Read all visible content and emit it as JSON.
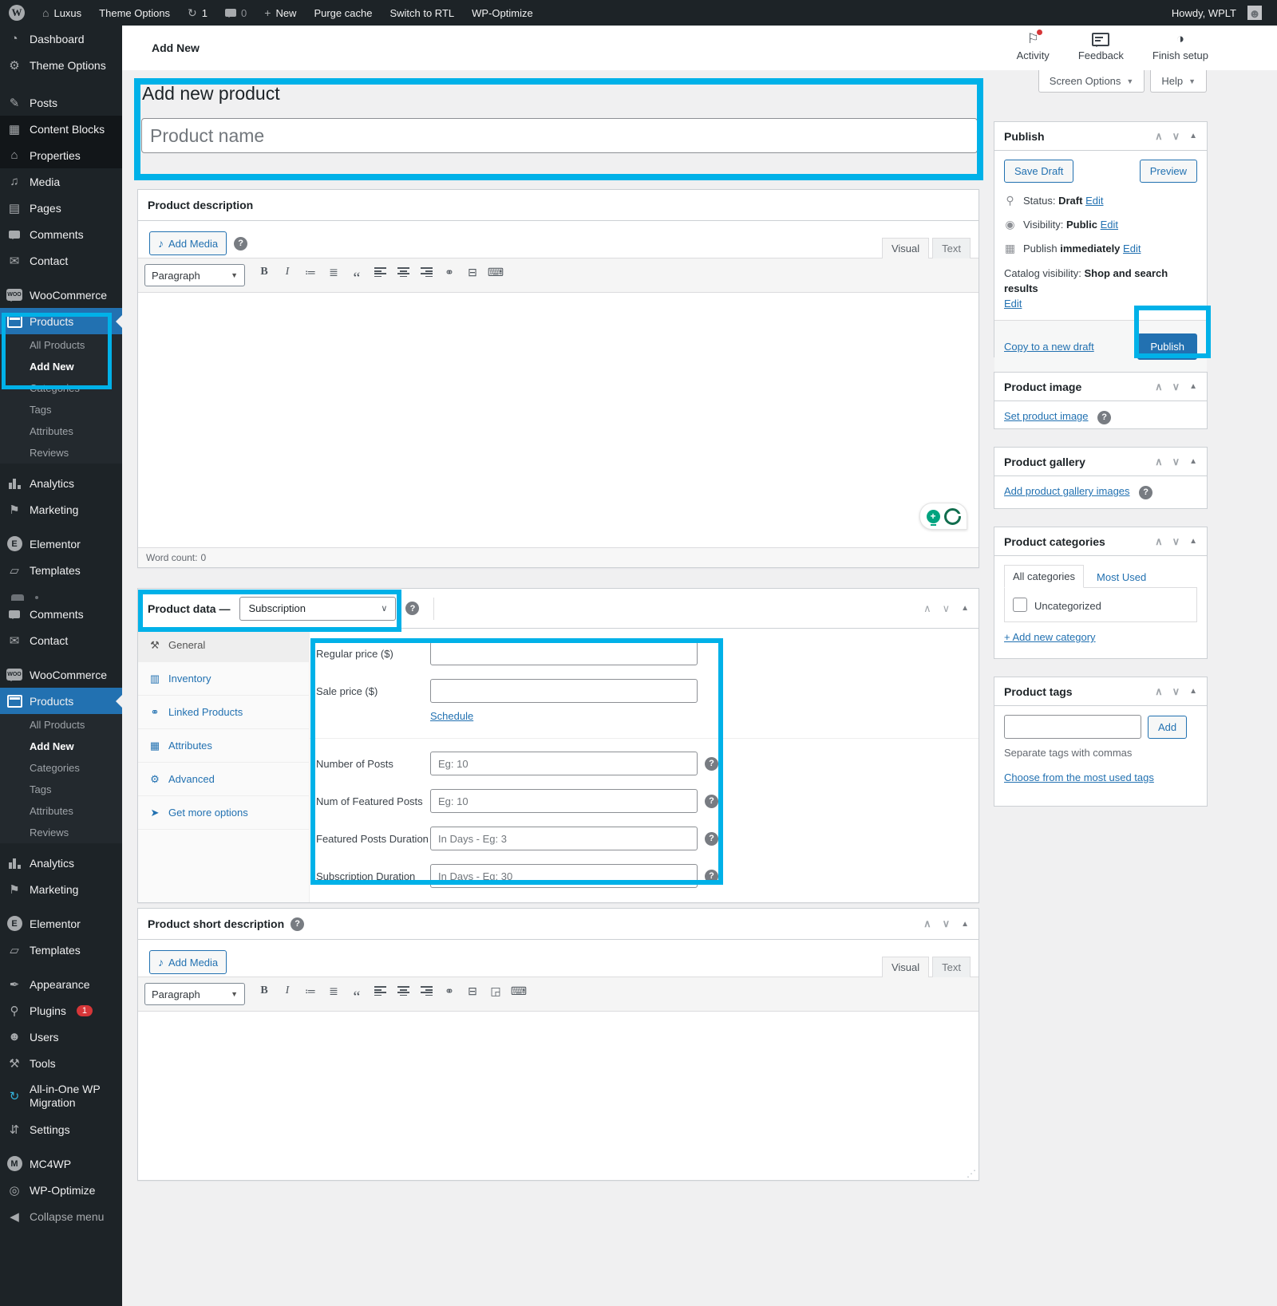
{
  "colors": {
    "annotation": "#00b1e8",
    "accent": "#2271b1",
    "sidebar_active": "#2271b1",
    "badge_red": "#d63638"
  },
  "glyphs": {
    "caret_down": "▼",
    "up": "∧",
    "down": "∨",
    "toggle": "▲",
    "help": "?",
    "resize": "⋰",
    "select_caret": "∨"
  },
  "admin_bar": {
    "logo": "W",
    "home_icon": "⌂",
    "site_name": "Luxus",
    "theme_options": "Theme Options",
    "update_icon": "↻",
    "update_count": "1",
    "comment_count": "0",
    "plus_icon": "+",
    "new_label": "New",
    "purge_cache": "Purge cache",
    "switch_rtl": "Switch to RTL",
    "wp_optimize": "WP-Optimize",
    "howdy": "Howdy, WPLT"
  },
  "header": {
    "page_title": "Add New",
    "actions": [
      {
        "label": "Activity",
        "icon": "⚐"
      },
      {
        "label": "Feedback",
        "icon": ""
      },
      {
        "label": "Finish setup",
        "icon": "◑"
      }
    ],
    "screen_options": "Screen Options",
    "help": "Help"
  },
  "sidebar": {
    "items": [
      {
        "type": "item",
        "icon": "◔",
        "icon_name": "dashboard-icon",
        "label": "Dashboard"
      },
      {
        "type": "item",
        "icon": "⚙",
        "icon_name": "gear-icon",
        "label": "Theme Options"
      },
      {
        "type": "gap",
        "h": 14
      },
      {
        "type": "item",
        "icon": "✎",
        "icon_name": "pin-icon",
        "label": "Posts"
      },
      {
        "type": "item",
        "icon": "▦",
        "icon_name": "blocks-icon",
        "label": "Content Blocks",
        "shaded": true
      },
      {
        "type": "item",
        "icon": "⌂",
        "icon_name": "house-icon",
        "label": "Properties",
        "shaded": true
      },
      {
        "type": "item",
        "icon": "♫",
        "icon_name": "media-icon",
        "label": "Media"
      },
      {
        "type": "item",
        "icon": "▤",
        "icon_name": "pages-icon",
        "label": "Pages"
      },
      {
        "type": "item",
        "icon": "css:bub-side",
        "icon_name": "comments-bubble-icon",
        "label": "Comments"
      },
      {
        "type": "item",
        "icon": "✉",
        "icon_name": "envelope-icon",
        "label": "Contact"
      },
      {
        "type": "gap",
        "h": 10
      },
      {
        "type": "item",
        "icon": "css:woo",
        "icon_char": "WOO",
        "icon_name": "woocommerce-icon",
        "label": "WooCommerce"
      },
      {
        "type": "item",
        "icon": "css:prod",
        "icon_name": "products-box-icon",
        "label": "Products",
        "active": true
      },
      {
        "type": "sub",
        "label": "All Products"
      },
      {
        "type": "sub",
        "label": "Add New",
        "bold": true
      },
      {
        "type": "sub",
        "label": "Categories"
      },
      {
        "type": "sub",
        "label": "Tags"
      },
      {
        "type": "sub",
        "label": "Attributes"
      },
      {
        "type": "sub",
        "label": "Reviews"
      },
      {
        "type": "gap",
        "h": 8
      },
      {
        "type": "item",
        "icon": "css:bars",
        "icon_name": "analytics-bars-icon",
        "label": "Analytics"
      },
      {
        "type": "item",
        "icon": "⚑",
        "icon_name": "megaphone-icon",
        "label": "Marketing"
      },
      {
        "type": "gap",
        "h": 10
      },
      {
        "type": "item",
        "icon": "css:circ",
        "icon_char": "E",
        "icon_name": "elementor-icon",
        "label": "Elementor"
      },
      {
        "type": "item",
        "icon": "▱",
        "icon_name": "folder-icon",
        "label": "Templates"
      },
      {
        "type": "glitch"
      },
      {
        "type": "item",
        "icon": "css:bub-side",
        "icon_name": "comments-bubble-icon",
        "label": "Comments"
      },
      {
        "type": "item",
        "icon": "✉",
        "icon_name": "envelope-icon",
        "label": "Contact"
      },
      {
        "type": "gap",
        "h": 10
      },
      {
        "type": "item",
        "icon": "css:woo",
        "icon_char": "WOO",
        "icon_name": "woocommerce-icon",
        "label": "WooCommerce"
      },
      {
        "type": "item",
        "icon": "css:prod",
        "icon_name": "products-box-icon",
        "label": "Products",
        "active": true
      },
      {
        "type": "sub",
        "label": "All Products"
      },
      {
        "type": "sub",
        "label": "Add New",
        "bold": true
      },
      {
        "type": "sub",
        "label": "Categories"
      },
      {
        "type": "sub",
        "label": "Tags"
      },
      {
        "type": "sub",
        "label": "Attributes"
      },
      {
        "type": "sub",
        "label": "Reviews"
      },
      {
        "type": "gap",
        "h": 8
      },
      {
        "type": "item",
        "icon": "css:bars",
        "icon_name": "analytics-bars-icon",
        "label": "Analytics"
      },
      {
        "type": "item",
        "icon": "⚑",
        "icon_name": "megaphone-icon",
        "label": "Marketing"
      },
      {
        "type": "gap",
        "h": 10
      },
      {
        "type": "item",
        "icon": "css:circ",
        "icon_char": "E",
        "icon_name": "elementor-icon",
        "label": "Elementor"
      },
      {
        "type": "item",
        "icon": "▱",
        "icon_name": "folder-icon",
        "label": "Templates"
      },
      {
        "type": "gap",
        "h": 10
      },
      {
        "type": "item",
        "icon": "✒",
        "icon_name": "brush-icon",
        "label": "Appearance"
      },
      {
        "type": "item",
        "icon": "⚲",
        "icon_name": "plug-icon",
        "label": "Plugins",
        "badge": "1"
      },
      {
        "type": "item",
        "icon": "☻",
        "icon_name": "user-icon",
        "label": "Users"
      },
      {
        "type": "item",
        "icon": "⚒",
        "icon_name": "tools-icon",
        "label": "Tools"
      },
      {
        "type": "item",
        "icon": "↻",
        "icon_name": "migration-arrows-icon",
        "icon_color": "#33b3db",
        "label": "All-in-One WP Migration",
        "two_line": true
      },
      {
        "type": "item",
        "icon": "⇵",
        "icon_name": "sliders-icon",
        "label": "Settings"
      },
      {
        "type": "gap",
        "h": 10
      },
      {
        "type": "item",
        "icon": "css:circ",
        "icon_char": "M",
        "icon_name": "mc4wp-icon",
        "label": "MC4WP"
      },
      {
        "type": "item",
        "icon": "◎",
        "icon_name": "wp-optimize-icon",
        "label": "WP-Optimize"
      },
      {
        "type": "item",
        "icon": "◀",
        "icon_name": "collapse-arrow-icon",
        "label": "Collapse menu",
        "muted": true
      }
    ]
  },
  "title_section": {
    "heading": "Add new product",
    "name_placeholder": "Product name"
  },
  "editor": {
    "add_media": "Add Media",
    "visual_tab": "Visual",
    "text_tab": "Text",
    "paragraph": "Paragraph",
    "word_count_label": "Word count:",
    "word_count": "0",
    "toolbar": [
      {
        "name": "bold-icon",
        "g": "B",
        "cls": "bold"
      },
      {
        "name": "italic-icon",
        "g": "I",
        "cls": "ital"
      },
      {
        "name": "bullet-list-icon",
        "g": "≔"
      },
      {
        "name": "numbered-list-icon",
        "g": "≣"
      },
      {
        "name": "blockquote-icon",
        "g": "“",
        "cls": "quote"
      },
      {
        "name": "align-left-icon",
        "g": "css:al"
      },
      {
        "name": "align-center-icon",
        "g": "css:ac"
      },
      {
        "name": "align-right-icon",
        "g": "css:ar"
      },
      {
        "name": "link-icon",
        "g": "⚭"
      },
      {
        "name": "more-tag-icon",
        "g": "⊟"
      },
      {
        "name": "keyboard-shortcuts-icon",
        "g": "⌨"
      }
    ],
    "toolbar_short": [
      {
        "name": "bold-icon",
        "g": "B",
        "cls": "bold"
      },
      {
        "name": "italic-icon",
        "g": "I",
        "cls": "ital"
      },
      {
        "name": "bullet-list-icon",
        "g": "≔"
      },
      {
        "name": "numbered-list-icon",
        "g": "≣"
      },
      {
        "name": "blockquote-icon",
        "g": "“",
        "cls": "quote"
      },
      {
        "name": "align-left-icon",
        "g": "css:al"
      },
      {
        "name": "align-center-icon",
        "g": "css:ac"
      },
      {
        "name": "align-right-icon",
        "g": "css:ar"
      },
      {
        "name": "link-icon",
        "g": "⚭"
      },
      {
        "name": "more-tag-icon",
        "g": "⊟"
      },
      {
        "name": "fullscreen-icon",
        "g": "◲"
      },
      {
        "name": "keyboard-shortcuts-icon",
        "g": "⌨"
      }
    ]
  },
  "description_box": {
    "title": "Product description"
  },
  "short_box": {
    "title": "Product short description"
  },
  "product_data": {
    "title": "Product data —",
    "type_value": "Subscription",
    "tabs": [
      {
        "label": "General",
        "icon": "⚒",
        "icon_name": "wrench-icon",
        "active": true
      },
      {
        "label": "Inventory",
        "icon": "▥",
        "icon_name": "inventory-tag-icon"
      },
      {
        "label": "Linked Products",
        "icon": "⚭",
        "icon_name": "chain-link-icon"
      },
      {
        "label": "Attributes",
        "icon": "▦",
        "icon_name": "attributes-list-icon"
      },
      {
        "label": "Advanced",
        "icon": "⚙",
        "icon_name": "gear-icon"
      },
      {
        "label": "Get more options",
        "icon": "➤",
        "icon_name": "dart-icon"
      }
    ],
    "fields": [
      {
        "label": "Regular price ($)",
        "placeholder": ""
      },
      {
        "label": "Sale price ($)",
        "placeholder": "",
        "after_link": "Schedule"
      },
      {
        "divider": true
      },
      {
        "label": "Number of Posts",
        "placeholder": "Eg: 10",
        "help": true
      },
      {
        "label": "Num of Featured Posts",
        "placeholder": "Eg: 10",
        "help": true
      },
      {
        "label": "Featured Posts Duration",
        "placeholder": "In Days - Eg: 3",
        "help": true
      },
      {
        "label": "Subscription Duration",
        "placeholder": "In Days - Eg: 30",
        "help": true
      }
    ]
  },
  "publish_panel": {
    "title": "Publish",
    "save_draft": "Save Draft",
    "preview": "Preview",
    "status_icon": "⚲",
    "status_label": "Status:",
    "status_value": "Draft",
    "visibility_icon": "◉",
    "visibility_label": "Visibility:",
    "visibility_value": "Public",
    "calendar_icon": "▦",
    "publish_label": "Publish",
    "publish_value": "immediately",
    "catalog_label": "Catalog visibility:",
    "catalog_value": "Shop and search results",
    "edit": "Edit",
    "copy_link": "Copy to a new draft",
    "publish_button": "Publish"
  },
  "image_panel": {
    "title": "Product image",
    "link": "Set product image"
  },
  "gallery_panel": {
    "title": "Product gallery",
    "link": "Add product gallery images"
  },
  "categories_panel": {
    "title": "Product categories",
    "tab_all": "All categories",
    "tab_most": "Most Used",
    "checkbox_label": "Uncategorized",
    "add_new": "+ Add new category"
  },
  "tags_panel": {
    "title": "Product tags",
    "add_button": "Add",
    "hint": "Separate tags with commas",
    "choose_link": "Choose from the most used tags"
  }
}
